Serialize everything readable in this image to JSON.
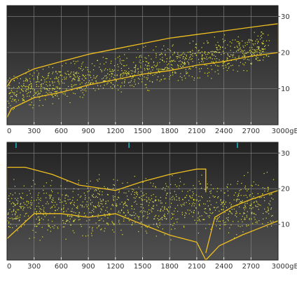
{
  "colors": {
    "plot_bg": "#3a3a3a",
    "grid": "#8a8a8a",
    "axis": "#e8e8e8",
    "envelope": "#f0c020",
    "points": "#e6e640",
    "tick_cyan": "#28b4c8"
  },
  "chart_data": [
    {
      "type": "scatter",
      "title": "",
      "xlabel": "",
      "ylabel": "",
      "x_unit": "gB",
      "xlim": [
        0,
        3000
      ],
      "ylim": [
        0,
        33
      ],
      "x_ticks": [
        0,
        300,
        600,
        900,
        1200,
        1500,
        1800,
        2100,
        2400,
        2700,
        3000
      ],
      "x_tick_labels": [
        "0",
        "300",
        "600",
        "900",
        "1200",
        "1500",
        "1800",
        "2100",
        "2400",
        "2700",
        "3000gB"
      ],
      "y_ticks": [
        10,
        20,
        30
      ],
      "y_tick_labels": [
        "10",
        "20",
        "30"
      ],
      "grid": true,
      "legend": "none",
      "series": [
        {
          "kind": "envelope-upper",
          "x": [
            0,
            50,
            300,
            600,
            900,
            1200,
            1500,
            1800,
            2100,
            2400,
            2700,
            3000
          ],
          "y": [
            10.5,
            12.5,
            15.5,
            17.5,
            19.5,
            21,
            22.5,
            24,
            25,
            26,
            27,
            28
          ]
        },
        {
          "kind": "envelope-lower",
          "x": [
            0,
            50,
            300,
            600,
            900,
            1200,
            1500,
            1800,
            2100,
            2400,
            2700,
            3000
          ],
          "y": [
            2,
            4.5,
            7.5,
            9,
            11,
            12.5,
            14,
            15,
            16.5,
            17.5,
            19,
            20
          ]
        },
        {
          "kind": "scatter-cloud",
          "x_range": [
            0,
            2900
          ],
          "y_center_at_x0": 9,
          "y_center_at_x3000": 22,
          "y_spread": 4,
          "count": 1100
        }
      ]
    },
    {
      "type": "scatter",
      "title": "",
      "xlabel": "",
      "ylabel": "",
      "x_unit": "gB",
      "xlim": [
        0,
        3000
      ],
      "ylim": [
        0,
        33
      ],
      "x_ticks": [
        0,
        300,
        600,
        900,
        1200,
        1500,
        1800,
        2100,
        2400,
        2700,
        3000
      ],
      "x_tick_labels": [
        "0",
        "300",
        "600",
        "900",
        "1200",
        "1500",
        "1800",
        "2100",
        "2400",
        "2700",
        "3000gB"
      ],
      "y_ticks": [
        10,
        20,
        30
      ],
      "y_tick_labels": [
        "10",
        "20",
        "30"
      ],
      "grid": true,
      "legend": "none",
      "top_markers_x": [
        100,
        1350,
        2550
      ],
      "series": [
        {
          "kind": "envelope-left",
          "x": [
            0,
            0,
            200,
            500,
            800,
            1200,
            1500,
            1800,
            2100,
            2200,
            2200
          ],
          "y": [
            20,
            26,
            26,
            24,
            21,
            19.5,
            22,
            24,
            25.5,
            25.5,
            19
          ],
          "x2": [
            0,
            300,
            600,
            900,
            1200,
            1500,
            1800,
            2100,
            2200
          ],
          "y2": [
            6,
            13,
            13,
            12,
            13,
            10,
            7,
            5,
            0
          ]
        },
        {
          "kind": "envelope-right",
          "x": [
            2200,
            2300,
            2500,
            2700,
            3000
          ],
          "y": [
            2,
            12,
            15,
            17,
            19.5
          ],
          "x2": [
            2200,
            2350,
            2600,
            2800,
            3000
          ],
          "y2": [
            0,
            4,
            7,
            9,
            11
          ]
        },
        {
          "kind": "scatter-cloud",
          "x_range": [
            0,
            2950
          ],
          "y_center_at_x0": 14,
          "y_center_at_x3000": 16,
          "y_spread": 6,
          "count": 1100
        }
      ]
    }
  ]
}
